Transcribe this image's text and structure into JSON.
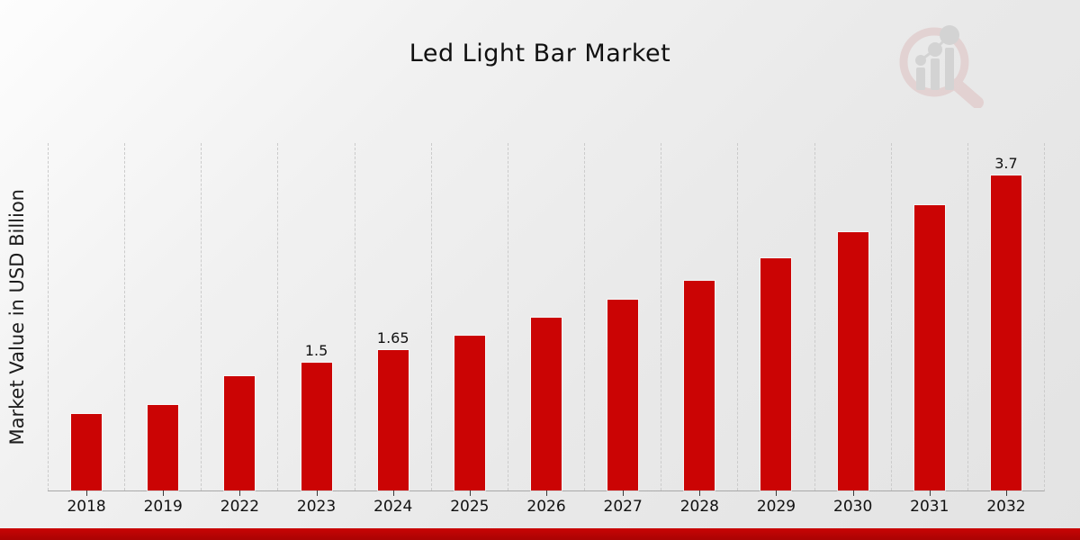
{
  "page": {
    "background_top_left": "#fdfdfd",
    "background_bottom_right": "#e3e3e3",
    "footer_bar_color": "#b50404"
  },
  "chart_data": {
    "type": "bar",
    "title": "Led Light Bar Market",
    "ylabel": "Market Value in USD Billion",
    "xlabel": "",
    "categories": [
      "2018",
      "2019",
      "2022",
      "2023",
      "2024",
      "2025",
      "2026",
      "2027",
      "2028",
      "2029",
      "2030",
      "2031",
      "2032"
    ],
    "values": [
      0.9,
      1.0,
      1.34,
      1.5,
      1.65,
      1.82,
      2.03,
      2.24,
      2.46,
      2.73,
      3.03,
      3.35,
      3.7
    ],
    "bar_value_labels": [
      "",
      "",
      "",
      "1.5",
      "1.65",
      "",
      "",
      "",
      "",
      "",
      "",
      "",
      "3.7"
    ],
    "bar_color": "#cb0404",
    "ylim": [
      0,
      4.08
    ],
    "grid": "vertical-dashed",
    "legend": "none",
    "watermark_icon": "magnifier-bar-chart-logo"
  }
}
